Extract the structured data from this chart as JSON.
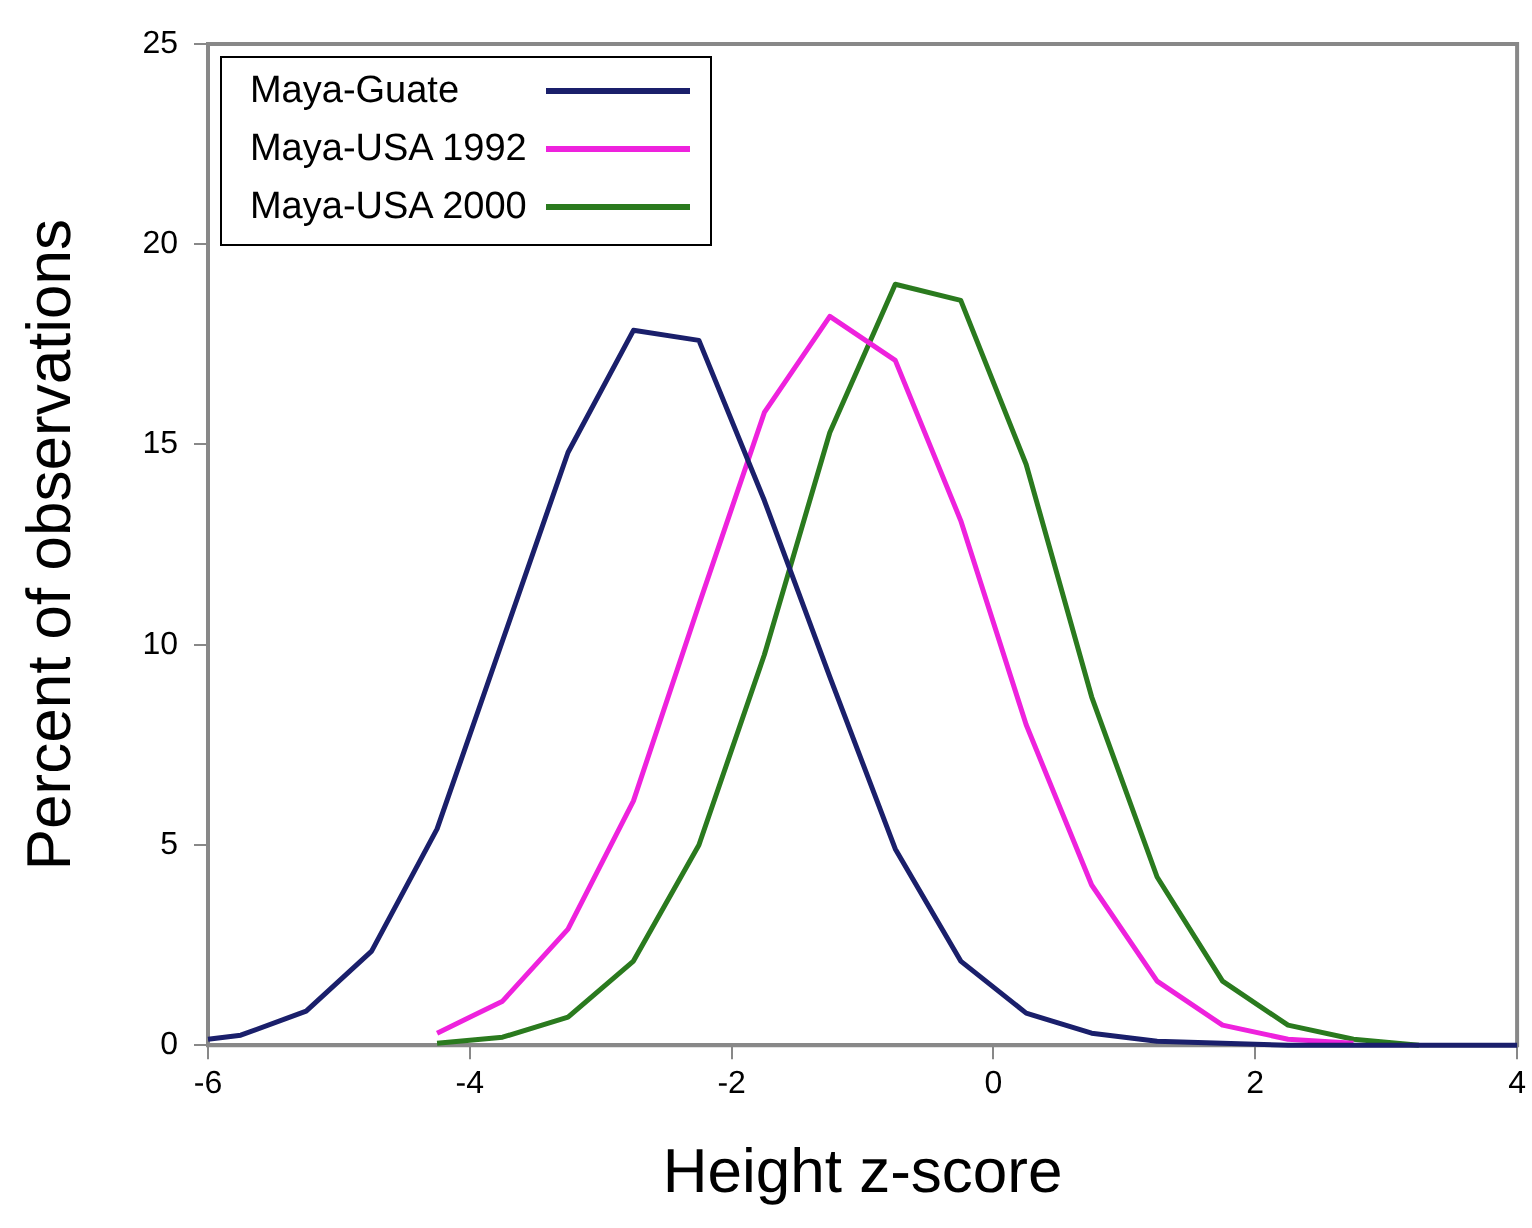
{
  "chart_data": {
    "type": "line",
    "xlabel": "Height z-score",
    "ylabel": "Percent of observations",
    "xlim": [
      -6,
      4
    ],
    "xticks": [
      -6,
      -4,
      -2,
      0,
      2,
      4
    ],
    "ylim": [
      0,
      25
    ],
    "yticks": [
      0,
      5,
      10,
      15,
      20,
      25
    ],
    "grid": false,
    "legend": "top left",
    "marker": "none",
    "line_style": "solid",
    "series": [
      {
        "name": "Maya-Guate",
        "color": "#1a1f6b",
        "x": [
          -6,
          -5.75,
          -5.25,
          -4.75,
          -4.25,
          -3.75,
          -3.25,
          -2.75,
          -2.25,
          -1.75,
          -1.25,
          -0.75,
          -0.25,
          0.25,
          0.75,
          1.25,
          1.75,
          2.25,
          2.75,
          3.25,
          3.75,
          4
        ],
        "values": [
          0.15,
          0.25,
          0.85,
          2.35,
          5.4,
          10.1,
          14.8,
          17.85,
          17.6,
          13.6,
          9.2,
          4.9,
          2.1,
          0.8,
          0.3,
          0.1,
          0.05,
          0,
          0,
          0,
          0,
          0
        ]
      },
      {
        "name": "Maya-USA 1992",
        "color": "#ee22dd",
        "x": [
          -4.25,
          -3.75,
          -3.25,
          -2.75,
          -2.25,
          -1.75,
          -1.25,
          -0.75,
          -0.25,
          0.25,
          0.75,
          1.25,
          1.75,
          2.25,
          2.75
        ],
        "values": [
          0.3,
          1.1,
          2.9,
          6.1,
          11,
          15.8,
          18.2,
          17.1,
          13.1,
          8,
          4,
          1.6,
          0.5,
          0.15,
          0.05
        ]
      },
      {
        "name": "Maya-USA 2000",
        "color": "#2a7a1e",
        "x": [
          -4.25,
          -3.75,
          -3.25,
          -2.75,
          -2.25,
          -1.75,
          -1.25,
          -0.75,
          -0.25,
          0.25,
          0.75,
          1.25,
          1.75,
          2.25,
          2.75,
          3.25
        ],
        "values": [
          0.05,
          0.2,
          0.7,
          2.1,
          5,
          9.75,
          15.3,
          19,
          18.6,
          14.5,
          8.7,
          4.2,
          1.6,
          0.5,
          0.15,
          0
        ]
      }
    ]
  }
}
